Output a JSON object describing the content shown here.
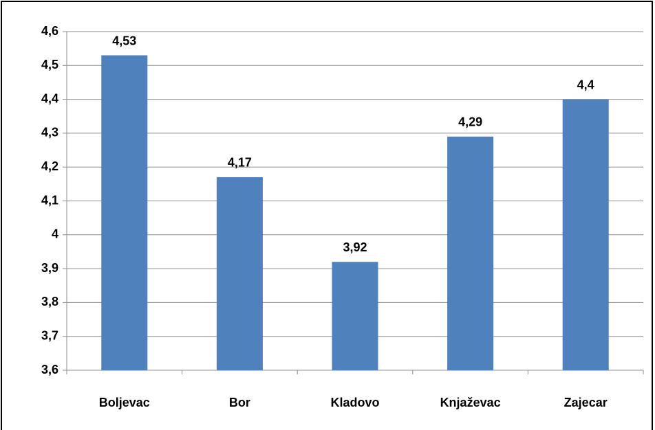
{
  "chart_data": {
    "type": "bar",
    "categories": [
      "Boljevac",
      "Bor",
      "Kladovo",
      "Knjaževac",
      "Zajecar"
    ],
    "values": [
      4.53,
      4.17,
      3.92,
      4.29,
      4.4
    ],
    "value_labels": [
      "4,53",
      "4,17",
      "3,92",
      "4,29",
      "4,4"
    ],
    "color": "#4f81bd",
    "ylim": [
      3.6,
      4.6
    ],
    "yticks": [
      {
        "value": 3.6,
        "label": "3,6"
      },
      {
        "value": 3.7,
        "label": "3,7"
      },
      {
        "value": 3.8,
        "label": "3,8"
      },
      {
        "value": 3.9,
        "label": "3,9"
      },
      4,
      {
        "value": 4.1,
        "label": "4,1"
      },
      {
        "value": 4.2,
        "label": "4,2"
      },
      {
        "value": 4.3,
        "label": "4,3"
      },
      {
        "value": 4.4,
        "label": "4,4"
      },
      {
        "value": 4.5,
        "label": "4,5"
      },
      {
        "value": 4.6,
        "label": "4,6"
      }
    ],
    "grid": true
  }
}
